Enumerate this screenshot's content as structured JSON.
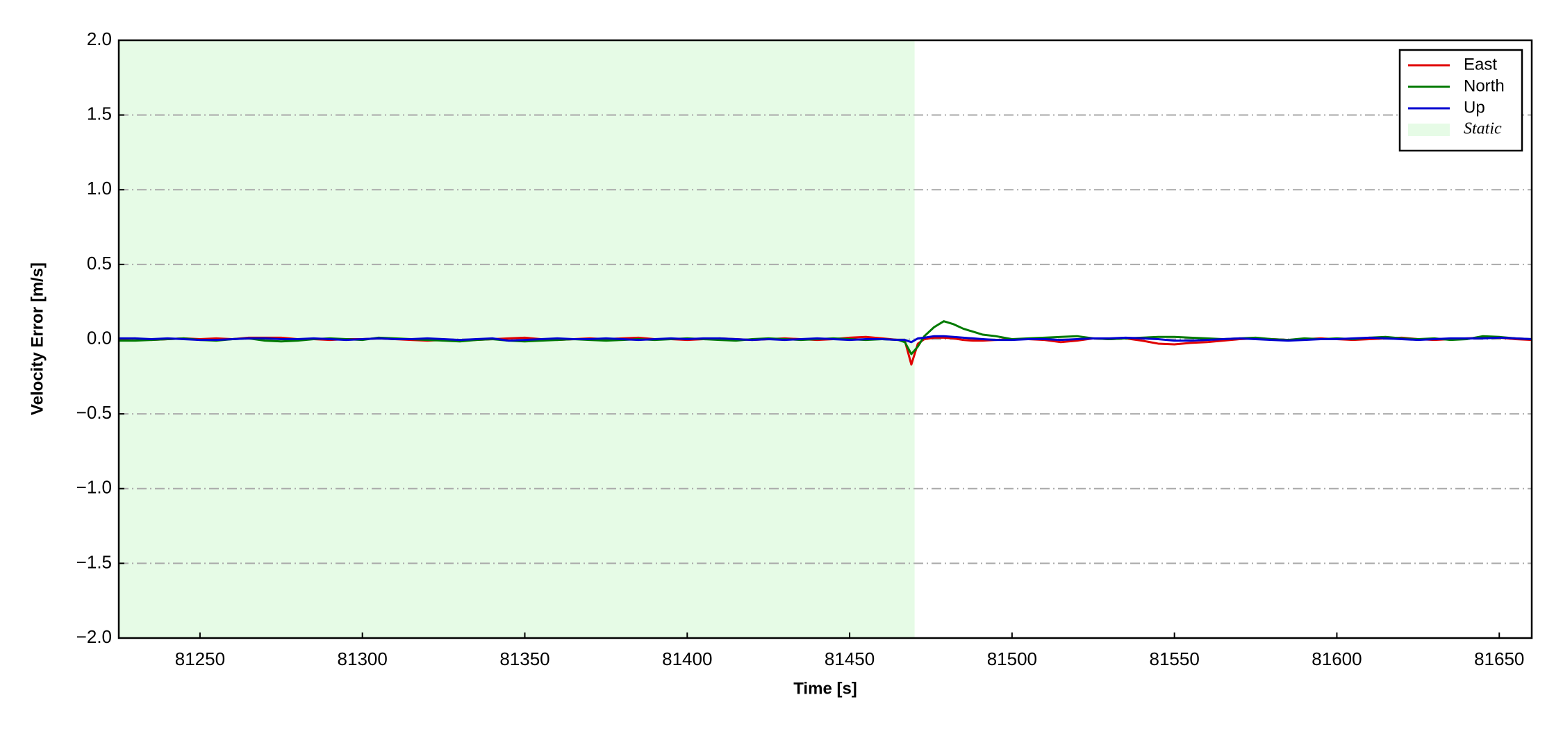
{
  "chart_data": {
    "type": "line",
    "xlabel": "Time [s]",
    "ylabel": "Velocity Error [m/s]",
    "xlim": [
      81225,
      81660
    ],
    "ylim": [
      -2.0,
      2.0
    ],
    "xticks": [
      81250,
      81300,
      81350,
      81400,
      81450,
      81500,
      81550,
      81600,
      81650
    ],
    "yticks": [
      {
        "value": -2.0,
        "label": "−2.0"
      },
      {
        "value": -1.5,
        "label": "−1.5"
      },
      {
        "value": -1.0,
        "label": "−1.0"
      },
      {
        "value": -0.5,
        "label": "−0.5"
      },
      {
        "value": 0,
        "label": "0.0"
      },
      0.5,
      {
        "value": 1.0,
        "label": "1.0"
      },
      1.5,
      {
        "value": 2.0,
        "label": "2.0"
      }
    ],
    "grid": true,
    "legend": "upper right",
    "shaded_region": {
      "name": "Static",
      "x": [
        81225,
        81470
      ],
      "color": "#e6fbe6"
    },
    "x": [
      81225,
      81230,
      81235,
      81240,
      81245,
      81250,
      81255,
      81260,
      81265,
      81270,
      81275,
      81280,
      81285,
      81290,
      81295,
      81300,
      81305,
      81310,
      81315,
      81320,
      81325,
      81330,
      81335,
      81340,
      81345,
      81350,
      81355,
      81360,
      81365,
      81370,
      81375,
      81380,
      81385,
      81390,
      81395,
      81400,
      81405,
      81410,
      81415,
      81420,
      81425,
      81430,
      81435,
      81440,
      81445,
      81450,
      81455,
      81460,
      81465,
      81467,
      81469,
      81471,
      81473,
      81476,
      81479,
      81482,
      81485,
      81488,
      81491,
      81495,
      81500,
      81505,
      81510,
      81515,
      81520,
      81525,
      81530,
      81535,
      81540,
      81545,
      81550,
      81555,
      81560,
      81565,
      81570,
      81575,
      81580,
      81585,
      81590,
      81595,
      81600,
      81605,
      81610,
      81615,
      81620,
      81625,
      81630,
      81635,
      81640,
      81645,
      81650,
      81655,
      81660
    ],
    "series": [
      {
        "name": "East",
        "color": "#e00000",
        "values": [
          0,
          0.005,
          -0.005,
          0,
          0.005,
          0,
          0.005,
          0,
          0.01,
          0.01,
          0.01,
          0,
          0,
          -0.005,
          0,
          0,
          0.005,
          0,
          -0.005,
          -0.01,
          -0.005,
          -0.01,
          -0.005,
          0,
          0.005,
          0.01,
          0,
          -0.005,
          0,
          0.005,
          0,
          0.005,
          0.01,
          0,
          0,
          -0.005,
          0,
          0.005,
          0,
          -0.005,
          0,
          0.005,
          0,
          -0.005,
          0,
          0.01,
          0.015,
          0.005,
          -0.005,
          -0.01,
          -0.17,
          -0.03,
          0,
          0.01,
          0.01,
          0.005,
          -0.005,
          -0.01,
          -0.01,
          -0.005,
          0,
          0,
          -0.005,
          -0.02,
          -0.01,
          0.005,
          0,
          0.005,
          -0.01,
          -0.03,
          -0.035,
          -0.025,
          -0.02,
          -0.01,
          0,
          0.005,
          0,
          -0.005,
          0,
          0.005,
          0,
          -0.005,
          0,
          0.005,
          0.01,
          0,
          -0.005,
          0,
          0.005,
          0.01,
          0.01,
          0,
          -0.005
        ]
      },
      {
        "name": "North",
        "color": "#007a00",
        "values": [
          -0.01,
          -0.01,
          -0.005,
          0,
          0.005,
          -0.005,
          -0.01,
          0,
          0.005,
          -0.01,
          -0.015,
          -0.01,
          0,
          0.005,
          0,
          -0.005,
          0.01,
          0.005,
          0,
          -0.005,
          -0.01,
          -0.015,
          -0.005,
          0,
          -0.01,
          -0.015,
          -0.01,
          -0.005,
          0,
          -0.005,
          -0.01,
          -0.005,
          0,
          -0.005,
          0,
          0.005,
          0,
          -0.005,
          -0.01,
          0,
          0.005,
          0,
          -0.005,
          0,
          0.005,
          0,
          -0.005,
          0,
          -0.005,
          -0.02,
          -0.1,
          -0.05,
          0.02,
          0.08,
          0.12,
          0.1,
          0.07,
          0.05,
          0.03,
          0.02,
          0,
          0.005,
          0.01,
          0.015,
          0.02,
          0.005,
          0,
          0.005,
          0.01,
          0.015,
          0.015,
          0.01,
          0.005,
          0,
          0.005,
          0.01,
          0,
          -0.005,
          0.005,
          0,
          0.005,
          0,
          0.01,
          0.015,
          0.005,
          0,
          0.005,
          -0.005,
          0,
          0.02,
          0.015,
          0.005,
          0
        ]
      },
      {
        "name": "Up",
        "color": "#0000d0",
        "values": [
          0.005,
          0.005,
          0,
          0.005,
          0,
          -0.005,
          -0.005,
          0,
          0.005,
          0.005,
          0,
          0,
          0.005,
          0,
          -0.005,
          0,
          0.005,
          0,
          0,
          0.005,
          0,
          -0.005,
          0,
          0.005,
          -0.01,
          -0.005,
          0,
          0.005,
          0,
          0,
          0.005,
          0,
          -0.005,
          0,
          0.005,
          0,
          0.005,
          0.005,
          0,
          -0.005,
          0,
          -0.005,
          0,
          0.005,
          0,
          -0.005,
          0,
          0,
          -0.005,
          -0.005,
          -0.02,
          0.005,
          0.01,
          0.02,
          0.02,
          0.015,
          0.01,
          0.005,
          0,
          -0.005,
          -0.005,
          0,
          0,
          -0.005,
          0,
          0.005,
          0.005,
          0.01,
          0.005,
          0,
          -0.01,
          -0.01,
          -0.005,
          0,
          0.005,
          0,
          -0.005,
          -0.01,
          -0.005,
          0,
          0,
          0.005,
          0.01,
          0.005,
          0,
          -0.005,
          0,
          0.005,
          0.005,
          0.005,
          0.01,
          0.005,
          0
        ]
      }
    ]
  }
}
